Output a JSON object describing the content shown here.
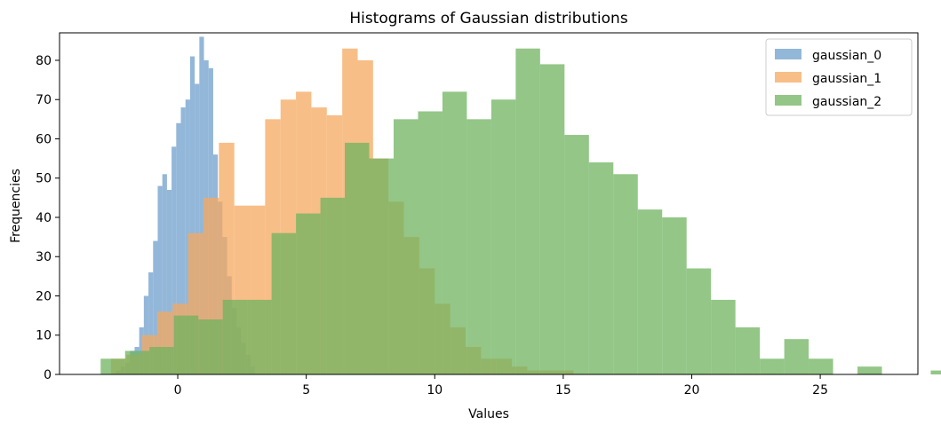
{
  "chart_data": {
    "type": "bar",
    "title": "Histograms of Gaussian distributions",
    "xlabel": "Values",
    "ylabel": "Frequencies",
    "xlim": [
      -4.6,
      28.8
    ],
    "ylim": [
      0,
      87
    ],
    "xticks": [
      0,
      5,
      10,
      15,
      20,
      25
    ],
    "yticks": [
      0,
      10,
      20,
      30,
      40,
      50,
      60,
      70,
      80
    ],
    "legend_position": "top-right",
    "series": [
      {
        "name": "gaussian_0",
        "color": "#6f9fcc",
        "bin_start": -2.4,
        "bin_width": 0.18,
        "counts": [
          1,
          2,
          3,
          6,
          7,
          12,
          20,
          26,
          34,
          48,
          51,
          47,
          58,
          64,
          68,
          70,
          81,
          74,
          86,
          80,
          78,
          56,
          44,
          35,
          25,
          17,
          12,
          8,
          5,
          2
        ]
      },
      {
        "name": "gaussian_1",
        "color": "#f5a85f",
        "bin_start": -2.6,
        "bin_width": 0.6,
        "counts": [
          4,
          5,
          10,
          16,
          18,
          36,
          45,
          59,
          43,
          43,
          65,
          70,
          72,
          68,
          66,
          83,
          80,
          55,
          44,
          35,
          27,
          18,
          12,
          7,
          4,
          4,
          2,
          1,
          1,
          1
        ]
      },
      {
        "name": "gaussian_2",
        "color": "#6fb35f",
        "bin_start": -3.0,
        "bin_width": 0.95,
        "counts": [
          4,
          6,
          7,
          15,
          14,
          19,
          19,
          36,
          41,
          45,
          59,
          55,
          65,
          67,
          72,
          65,
          70,
          83,
          79,
          61,
          54,
          51,
          42,
          40,
          27,
          19,
          12,
          4,
          9,
          4,
          0,
          2,
          0,
          0,
          1
        ]
      }
    ]
  }
}
